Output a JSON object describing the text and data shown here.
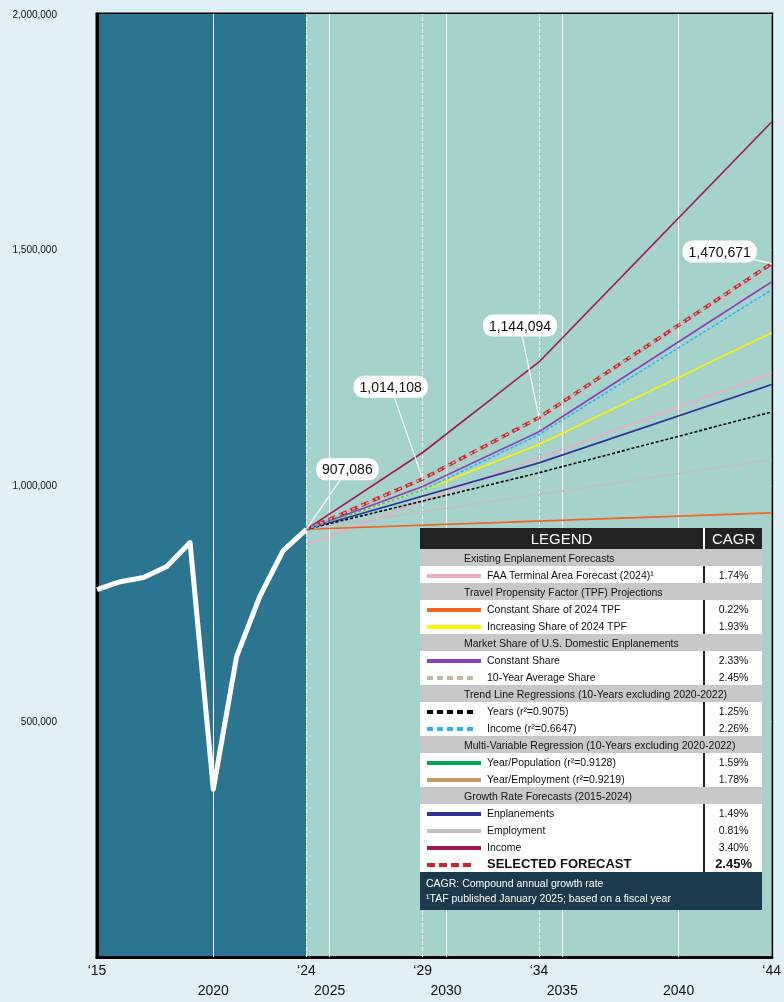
{
  "chart_data": {
    "type": "line",
    "legend_title": "LEGEND",
    "legend": "bottom right",
    "grid": "y",
    "marker": "none",
    "line_style": "solid",
    "xlim": [
      2015,
      2044
    ],
    "xticks": [
      2020,
      2025,
      2030,
      2035,
      2040
    ],
    "x2lim": [
      15,
      44
    ],
    "x2ticks": [
      {
        "value": 15,
        "label": "‘15"
      },
      {
        "value": 24,
        "label": "‘24"
      },
      {
        "value": 29,
        "label": "‘29"
      },
      {
        "value": 34,
        "label": "‘34"
      },
      {
        "value": 44,
        "label": "‘44"
      }
    ],
    "ylim": [
      0,
      2000000
    ],
    "yticks": [
      {
        "value": 500000,
        "label": "500,000"
      },
      {
        "value": 1000000,
        "label": "1,000,000"
      },
      {
        "value": 1500000,
        "label": "1,500,000"
      },
      {
        "value": 2000000,
        "label": "2,000,000"
      }
    ],
    "bands": [
      {
        "axis": "x",
        "from": 2015,
        "to": 2024,
        "color": "#2c7590"
      },
      {
        "axis": "x",
        "from": 2024,
        "to": 2044,
        "color": "#a6d2cc"
      }
    ],
    "ref_lines": [
      {
        "axis": "x",
        "value": 2020,
        "color": "#ffffff",
        "line_style": "solid"
      },
      {
        "axis": "x",
        "value": 2025,
        "color": "#ffffff",
        "line_style": "solid"
      },
      {
        "axis": "x",
        "value": 2030,
        "color": "#ffffff",
        "line_style": "solid"
      },
      {
        "axis": "x",
        "value": 2035,
        "color": "#ffffff",
        "line_style": "solid"
      },
      {
        "axis": "x",
        "value": 2040,
        "color": "#ffffff",
        "line_style": "solid"
      },
      {
        "axis": "x",
        "value": 2024,
        "color": "#ffffff",
        "line_style": "dashed"
      },
      {
        "axis": "x",
        "value": 2029,
        "color": "#ffffff",
        "line_style": "dashed"
      },
      {
        "axis": "x",
        "value": 2034,
        "color": "#ffffff",
        "line_style": "dashed"
      }
    ],
    "series": [
      {
        "color": "#ffffff",
        "x": [
          2015,
          2016,
          2017,
          2018,
          2019,
          2020,
          2021,
          2022,
          2023,
          2024
        ],
        "values": [
          779000,
          796000,
          805000,
          828000,
          879000,
          356000,
          637000,
          765000,
          862000,
          907086
        ]
      },
      {
        "name": "FAA Terminal Area Forecast (2024)¹",
        "color": "#f4a6c8",
        "x": [
          2024,
          2034,
          2044
        ],
        "values": [
          875000,
          1059000,
          1238000
        ]
      },
      {
        "name": "Constant Share of 2024 TPF",
        "color": "#f26522",
        "x": [
          2024,
          2044
        ],
        "values": [
          907086,
          942000
        ]
      },
      {
        "name": "Increasing Share of 2024 TPF",
        "color": "#fff200",
        "x": [
          2024,
          2029,
          2034,
          2044
        ],
        "values": [
          907086,
          990000,
          1087000,
          1324000
        ]
      },
      {
        "name": "Constant Share",
        "color": "#8a3fb5",
        "x": [
          2024,
          2029,
          2034,
          2044
        ],
        "values": [
          907086,
          998000,
          1114000,
          1432000
        ]
      },
      {
        "name": "10-Year Average Share",
        "color": "#c2b8a3",
        "line_style": "dashed",
        "x": [
          2024,
          2029,
          2034,
          2044
        ],
        "values": [
          907086,
          1014108,
          1144094,
          1470671
        ]
      },
      {
        "name": "Years (r²=0.9075)",
        "color": "#000000",
        "line_style": "dashed",
        "x": [
          2024,
          2034,
          2044
        ],
        "values": [
          907086,
          1027000,
          1156000
        ]
      },
      {
        "name": "Income (r²=0.6647)",
        "color": "#29b6f6",
        "line_style": "dashed",
        "x": [
          2024,
          2029,
          2034,
          2044
        ],
        "values": [
          907086,
          990000,
          1108000,
          1415000
        ]
      },
      {
        "name": "Year/Population (r²=0.9128)",
        "color": "#00a651"
      },
      {
        "name": "Year/Employment (r²=0.9219)",
        "color": "#c69c6d"
      },
      {
        "name": "Enplanements",
        "color": "#2e3192",
        "x": [
          2024,
          2034,
          2044
        ],
        "values": [
          907086,
          1048000,
          1214000
        ]
      },
      {
        "name": "Employment",
        "color": "#c0c0c0",
        "x": [
          2024,
          2044
        ],
        "values": [
          907086,
          1055000
        ]
      },
      {
        "name": "Income",
        "color": "#a0195a",
        "x": [
          2024,
          2029,
          2034,
          2044
        ],
        "values": [
          907086,
          1070000,
          1262000,
          1771000
        ]
      },
      {
        "name": "SELECTED FORECAST",
        "color": "#d0202f",
        "line_style": "dashed",
        "x": [
          2024,
          2029,
          2034,
          2044
        ],
        "values": [
          907086,
          1014108,
          1144094,
          1470671
        ]
      }
    ],
    "annotations": [
      {
        "text": "907,086",
        "x": 2024,
        "y": 907086
      },
      {
        "text": "1,014,108",
        "x": 2029,
        "y": 1014108
      },
      {
        "text": "1,144,094",
        "x": 2034,
        "y": 1144094
      },
      {
        "text": "1,470,671",
        "x": 2044,
        "y": 1470671
      },
      "CAGR",
      "Existing Enplanement Forecasts",
      "1.74%",
      "Travel Propensity Factor (TPF) Projections",
      "0.22%",
      "1.93%",
      "Market Share of U.S. Domestic Enplanements",
      "2.33%",
      "2.45%",
      "Trend Line Regressions (10-Years excluding 2020-2022)",
      "1.25%",
      "2.26%",
      "Multi-Variable Regression (10-Years excluding 2020-2022)",
      "1.59%",
      "1.78%",
      "Growth Rate Forecasts (2015-2024)",
      "1.49%",
      "0.81%",
      "3.40%",
      "2.45%",
      "CAGR: Compound annual growth rate",
      "¹TAF published January 2025; based on a fiscal year"
    ]
  }
}
